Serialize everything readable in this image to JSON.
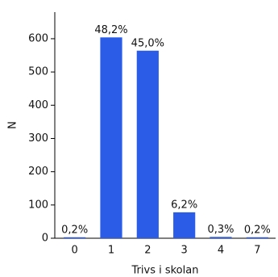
{
  "chart_data": {
    "type": "bar",
    "xlabel": "Trivs i skolan",
    "ylabel": "N",
    "categories": [
      "0",
      "1",
      "2",
      "3",
      "4",
      "7"
    ],
    "values": [
      3,
      604,
      564,
      78,
      4,
      3
    ],
    "percent_labels": [
      "0,2%",
      "48,2%",
      "45,0%",
      "6,2%",
      "0,3%",
      "0,2%"
    ],
    "color": "#2a5ce8",
    "ylim": [
      0,
      680
    ],
    "yticks": [
      0,
      100,
      200,
      300,
      400,
      500,
      600
    ],
    "grid": false
  }
}
